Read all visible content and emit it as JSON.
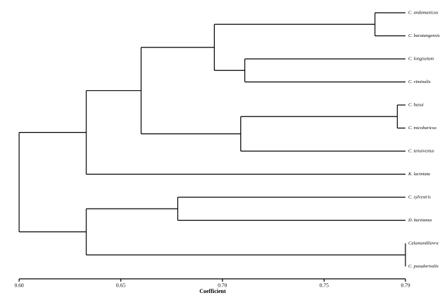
{
  "chart_data": {
    "type": "dendrogram",
    "xlabel": "Coefficient",
    "xlim": [
      0.6,
      0.79
    ],
    "xticks": [
      {
        "value": 0.6,
        "label": "0.60"
      },
      0.65,
      {
        "value": 0.7,
        "label": "0.70"
      },
      0.75,
      0.79
    ],
    "color": "#000000",
    "tree": {
      "height": 0.6,
      "children": [
        {
          "height": 0.633,
          "children": [
            {
              "height": 0.66,
              "children": [
                {
                  "height": 0.696,
                  "children": [
                    {
                      "height": 0.775,
                      "children": [
                        {
                          "label": "C. andamanicus"
                        },
                        {
                          "label": "C. baratangensis"
                        }
                      ]
                    },
                    {
                      "height": 0.711,
                      "children": [
                        {
                          "label": "C. longisetum"
                        },
                        {
                          "label": "C. viminalis"
                        }
                      ]
                    }
                  ]
                },
                {
                  "height": 0.709,
                  "children": [
                    {
                      "height": 0.786,
                      "children": [
                        {
                          "label": "C. basui"
                        },
                        {
                          "label": "C. micobaricus"
                        }
                      ]
                    },
                    {
                      "label": "C. tenuivestus"
                    }
                  ]
                }
              ]
            },
            {
              "label": "K. laciniata"
            }
          ]
        },
        {
          "height": 0.633,
          "children": [
            {
              "height": 0.678,
              "children": [
                {
                  "label": "C. sylvestris"
                },
                {
                  "label": "D. kurzianus"
                }
              ]
            },
            {
              "height": 0.79,
              "children": [
                {
                  "label": "Calamandilavra"
                },
                {
                  "label": "C. pseudorivalis"
                }
              ]
            }
          ]
        }
      ]
    }
  }
}
